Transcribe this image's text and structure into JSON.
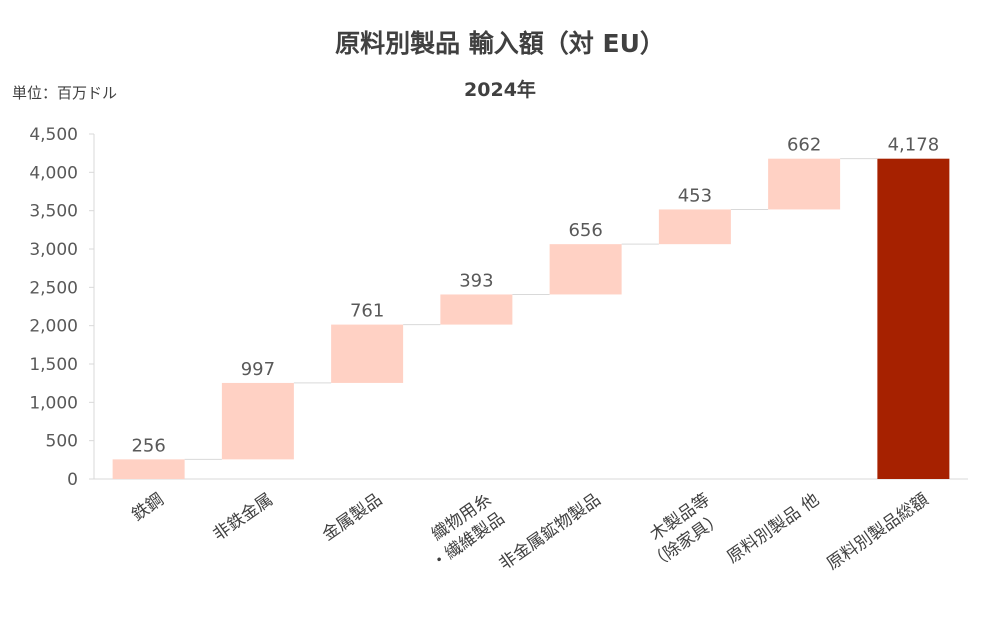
{
  "chart_data": {
    "type": "bar",
    "subtype": "waterfall",
    "title": "原料別製品 輸入額（対 EU）",
    "subtitle": "2024年",
    "unit_label": "単位：百万ドル",
    "categories": [
      [
        "鉄鋼"
      ],
      [
        "非鉄金属"
      ],
      [
        "金属製品"
      ],
      [
        "織物用糸",
        "・繊維製品"
      ],
      [
        "非金属鉱物製品"
      ],
      [
        "木製品等",
        "（除家具）"
      ],
      [
        "原料別製品 他"
      ],
      [
        "原料別製品総額"
      ]
    ],
    "values": [
      256,
      997,
      761,
      393,
      656,
      453,
      662,
      4178
    ],
    "value_labels": [
      "256",
      "997",
      "761",
      "393",
      "656",
      "453",
      "662",
      "4,178"
    ],
    "total_index": 7,
    "ylim": [
      0,
      4500
    ],
    "yticks": [
      0,
      500,
      1000,
      1500,
      2000,
      2500,
      3000,
      3500,
      4000,
      4500
    ],
    "ytick_labels": [
      "0",
      "500",
      "1,000",
      "1,500",
      "2,000",
      "2,500",
      "3,000",
      "3,500",
      "4,000",
      "4,500"
    ],
    "grid": false,
    "legend": "none",
    "colors": {
      "increment": "#ffd1c4",
      "total": "#a62100",
      "connector": "#d9d9d9",
      "axis": "#d9d9d9"
    }
  }
}
